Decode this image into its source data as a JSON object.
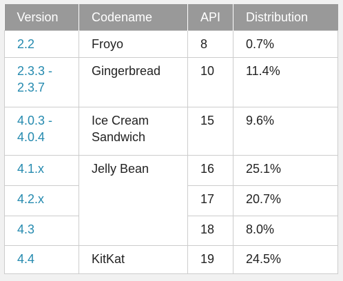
{
  "table": {
    "headers": [
      "Version",
      "Codename",
      "API",
      "Distribution"
    ],
    "rows": [
      {
        "version": "2.2",
        "codename": "Froyo",
        "api": "8",
        "distribution": "0.7%"
      },
      {
        "version": "2.3.3 - 2.3.7",
        "codename": "Gingerbread",
        "api": "10",
        "distribution": "11.4%"
      },
      {
        "version": "4.0.3 - 4.0.4",
        "codename": "Ice Cream Sandwich",
        "api": "15",
        "distribution": "9.6%"
      },
      {
        "version": "4.1.x",
        "codename": "Jelly Bean",
        "api": "16",
        "distribution": "25.1%"
      },
      {
        "version": "4.2.x",
        "codename": "",
        "api": "17",
        "distribution": "20.7%"
      },
      {
        "version": "4.3",
        "codename": "",
        "api": "18",
        "distribution": "8.0%"
      },
      {
        "version": "4.4",
        "codename": "KitKat",
        "api": "19",
        "distribution": "24.5%"
      }
    ]
  },
  "colors": {
    "header_bg": "#999999",
    "header_text": "#ffffff",
    "link_text": "#258aaf",
    "body_text": "#222222",
    "border": "#cccccc",
    "page_bg": "#f1f1f1"
  }
}
